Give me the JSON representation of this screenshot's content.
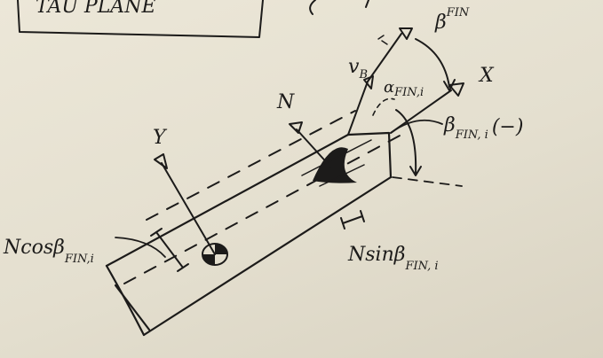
{
  "labels": {
    "header_fragment": "TAU PLANE",
    "beta_fin": {
      "main": "β",
      "sup": "FIN"
    },
    "x_axis": "X",
    "y_axis": "Y",
    "n_axis": "N",
    "v_beta": {
      "main": "v",
      "sub": "B"
    },
    "alpha_fin_i": {
      "main": "α",
      "sub": "FIN,i"
    },
    "beta_fin_i_neg": {
      "main": "β",
      "sub": "FIN, i",
      "suffix": "(−)"
    },
    "n_cos_beta": {
      "main": "Ncosβ",
      "sub": "FIN,i"
    },
    "n_sin_beta": {
      "main": "Nsinβ",
      "sub": "FIN, i"
    }
  },
  "colors": {
    "ink": "#1c1b1a",
    "paper": "#e7e2d2"
  }
}
